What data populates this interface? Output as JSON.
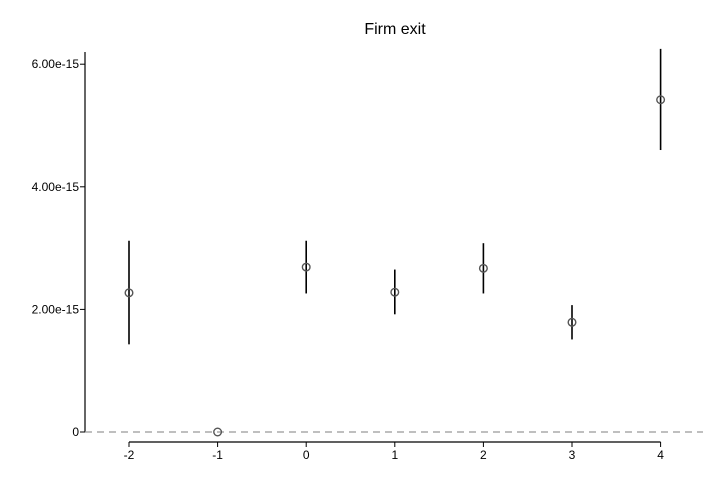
{
  "chart_data": {
    "type": "scatter",
    "title": "Firm exit",
    "xlabel": "",
    "ylabel": "",
    "x": [
      -2,
      -1,
      0,
      1,
      2,
      3,
      4
    ],
    "series": [
      {
        "values": [
          2.27e-15,
          0,
          2.69e-15,
          2.28e-15,
          2.67e-15,
          1.79e-15,
          5.42e-15
        ],
        "ci_lower": [
          1.43e-15,
          0,
          2.26e-15,
          1.92e-15,
          2.26e-15,
          1.51e-15,
          4.6e-15
        ],
        "ci_upper": [
          3.12e-15,
          0,
          3.12e-15,
          2.65e-15,
          3.08e-15,
          2.07e-15,
          6.25e-15
        ]
      }
    ],
    "xticks": [
      "-2",
      "-1",
      "0",
      "1",
      "2",
      "3",
      "4"
    ],
    "yticks": [
      {
        "value": 0,
        "label": "0"
      },
      {
        "value": 2e-15,
        "label": "2.00e-15"
      },
      {
        "value": 4e-15,
        "label": "4.00e-15"
      },
      {
        "value": 6e-15,
        "label": "6.00e-15"
      }
    ],
    "xlim": [
      -2.5,
      4.5
    ],
    "ylim": [
      0,
      6.2e-15
    ],
    "reference_line": {
      "y": 0,
      "style": "dashed"
    },
    "grid": false,
    "legend": "none",
    "colors": {
      "marker": "#555555",
      "error_bar": "#000000",
      "axis": "#000000",
      "reference_line": "#999999"
    }
  }
}
